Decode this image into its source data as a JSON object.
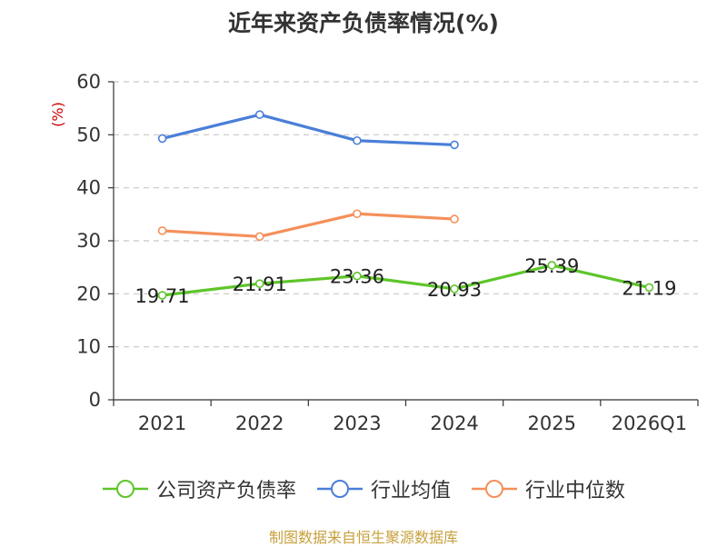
{
  "title": "近年来资产负债率情况(%)",
  "source": "制图数据来自恒生聚源数据库",
  "colors": {
    "company": "#5ec52a",
    "avg": "#4a7fd8",
    "median": "#f4905a",
    "unit": "#cc0000",
    "source": "#c8a03c"
  },
  "chart_data": {
    "type": "line",
    "ylabel": "(%)",
    "ylim": [
      0,
      60
    ],
    "yticks": [
      0,
      10,
      20,
      30,
      40,
      50,
      60
    ],
    "categories": [
      "2021",
      "2022",
      "2023",
      "2024",
      "2025",
      "2026Q1"
    ],
    "grid": true,
    "legend_position": "bottom",
    "series": [
      {
        "name": "公司资产负债率",
        "color": "#5ec52a",
        "values": [
          19.71,
          21.91,
          23.36,
          20.93,
          25.39,
          21.19
        ],
        "labels": [
          "19.71",
          "21.91",
          "23.36",
          "20.93",
          "25.39",
          "21.19"
        ]
      },
      {
        "name": "行业均值",
        "color": "#4a7fd8",
        "values": [
          49.3,
          53.8,
          48.9,
          48.1,
          null,
          null
        ]
      },
      {
        "name": "行业中位数",
        "color": "#f4905a",
        "values": [
          31.9,
          30.8,
          35.1,
          34.1,
          null,
          null
        ]
      }
    ]
  }
}
